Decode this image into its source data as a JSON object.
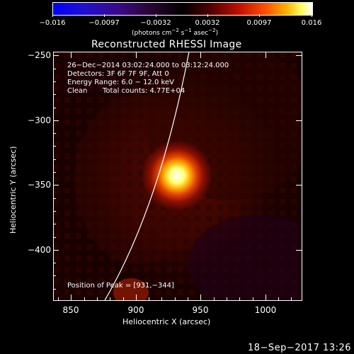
{
  "colorbar": {
    "ticks": [
      "−0.016",
      "−0.0097",
      "−0.0032",
      "0.0032",
      "0.0097",
      "0.016"
    ],
    "units_pre": "(photons cm",
    "units_exp1": "−2",
    "units_mid1": " s",
    "units_exp2": "−1",
    "units_mid2": " asec",
    "units_exp3": "−2",
    "units_post": ")"
  },
  "plot": {
    "title": "Reconstructed RHESSI Image",
    "ylabel": "Heliocentric Y (arcsec)",
    "xlabel": "Heliocentric X (arcsec)",
    "xticks": [
      "850",
      "900",
      "950",
      "1000"
    ],
    "yticks": [
      "−250",
      "−300",
      "−350",
      "−400"
    ],
    "annotations": {
      "time_range": "26−Dec−2014 03:02:24.000 to 03:12:24.000",
      "detectors": "Detectors: 3F 6F 7F 9F, Att 0",
      "energy": "Energy Range: 6.0 − 12.0 keV",
      "method": "Clean",
      "counts": "Total counts: 4.77E+04",
      "peak": "Position of Peak = [931,−344]"
    }
  },
  "footer": {
    "date": "18−Sep−2017 13:26"
  },
  "image_data": {
    "type": "heatmap",
    "x_range": [
      835,
      1028
    ],
    "y_range": [
      -438,
      -248
    ],
    "peak_position": [
      931,
      -344
    ],
    "colormap": "hot-cold (blue–purple–red–yellow–white)"
  }
}
